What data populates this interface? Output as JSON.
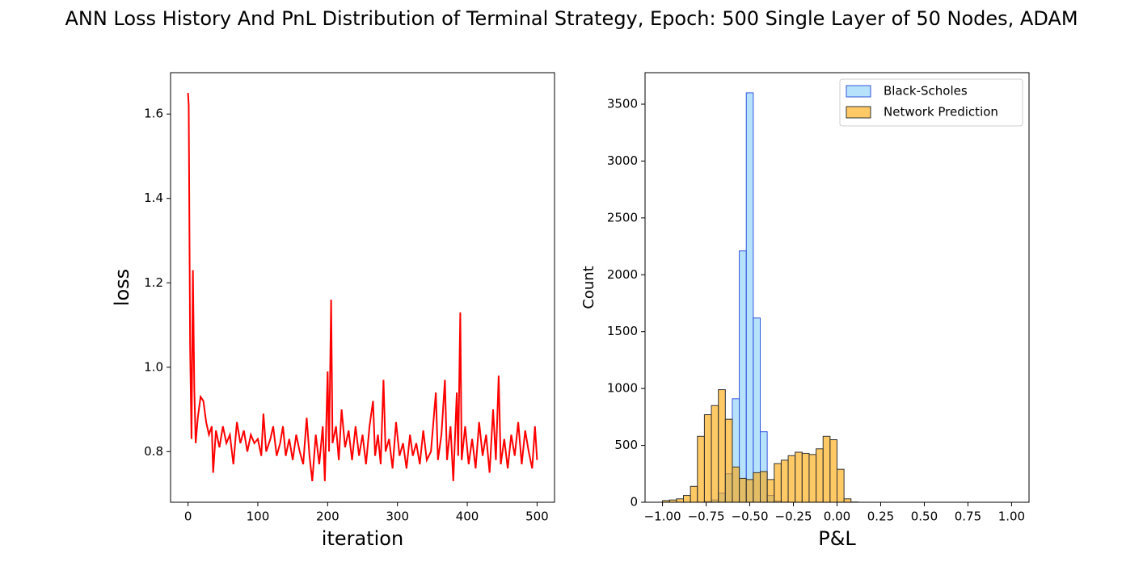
{
  "title": "ANN Loss History And PnL Distribution of Terminal Strategy, Epoch: 500 Single Layer of 50 Nodes, ADAM",
  "chart_data": [
    {
      "type": "line",
      "x_label": "iteration",
      "y_label": "loss",
      "color": "#ff0000",
      "xlim": [
        -25,
        525
      ],
      "ylim": [
        0.68,
        1.698
      ],
      "xticks": [
        0,
        100,
        200,
        300,
        400,
        500
      ],
      "yticks": [
        {
          "value": 0.8,
          "label": "0.8"
        },
        {
          "value": 1.0,
          "label": "1.0"
        },
        {
          "value": 1.2,
          "label": "1.2"
        },
        {
          "value": 1.4,
          "label": "1.4"
        },
        {
          "value": 1.6,
          "label": "1.6"
        }
      ],
      "x": [
        0,
        1,
        3,
        5,
        7,
        9,
        11,
        14,
        18,
        22,
        26,
        30,
        34,
        36,
        40,
        45,
        50,
        55,
        60,
        65,
        70,
        75,
        80,
        85,
        90,
        95,
        100,
        105,
        108,
        112,
        118,
        122,
        127,
        132,
        136,
        140,
        145,
        150,
        155,
        160,
        165,
        170,
        174,
        178,
        183,
        188,
        193,
        196,
        200,
        202,
        205,
        207,
        212,
        216,
        220,
        225,
        230,
        235,
        240,
        245,
        250,
        255,
        260,
        265,
        268,
        272,
        276,
        280,
        283,
        288,
        293,
        298,
        303,
        308,
        313,
        318,
        322,
        327,
        332,
        337,
        342,
        348,
        355,
        358,
        363,
        368,
        371,
        376,
        380,
        385,
        387,
        390,
        392,
        397,
        402,
        407,
        412,
        417,
        422,
        427,
        432,
        437,
        441,
        445,
        448,
        453,
        458,
        463,
        468,
        473,
        478,
        483,
        488,
        493,
        497,
        500
      ],
      "values": [
        1.65,
        1.62,
        1.05,
        0.83,
        1.23,
        0.95,
        0.82,
        0.88,
        0.93,
        0.92,
        0.87,
        0.84,
        0.86,
        0.75,
        0.85,
        0.81,
        0.86,
        0.82,
        0.84,
        0.77,
        0.87,
        0.82,
        0.85,
        0.8,
        0.84,
        0.82,
        0.83,
        0.79,
        0.89,
        0.8,
        0.83,
        0.86,
        0.79,
        0.82,
        0.86,
        0.79,
        0.83,
        0.78,
        0.84,
        0.8,
        0.77,
        0.88,
        0.79,
        0.73,
        0.84,
        0.77,
        0.86,
        0.73,
        0.99,
        0.8,
        1.16,
        0.82,
        0.86,
        0.78,
        0.9,
        0.81,
        0.85,
        0.78,
        0.86,
        0.79,
        0.84,
        0.77,
        0.86,
        0.92,
        0.79,
        0.84,
        0.77,
        0.97,
        0.8,
        0.83,
        0.76,
        0.87,
        0.79,
        0.82,
        0.76,
        0.84,
        0.79,
        0.82,
        0.77,
        0.85,
        0.78,
        0.8,
        0.94,
        0.78,
        0.84,
        0.97,
        0.78,
        0.86,
        0.73,
        0.94,
        0.79,
        1.13,
        0.78,
        0.86,
        0.77,
        0.83,
        0.76,
        0.87,
        0.79,
        0.84,
        0.75,
        0.9,
        0.78,
        0.98,
        0.77,
        0.83,
        0.76,
        0.84,
        0.79,
        0.87,
        0.77,
        0.85,
        0.8,
        0.76,
        0.86,
        0.78
      ]
    },
    {
      "type": "histogram",
      "x_label": "P&L",
      "y_label": "Count",
      "legend": "upper right",
      "xlim": [
        -1.1,
        1.1
      ],
      "ylim": [
        0,
        3777
      ],
      "xticks": [
        {
          "value": -1,
          "label": "−1.00"
        },
        {
          "value": -0.75,
          "label": "−0.75"
        },
        {
          "value": -0.5,
          "label": "−0.50"
        },
        {
          "value": -0.25,
          "label": "−0.25"
        },
        {
          "value": 0,
          "label": "0.00"
        },
        {
          "value": 0.25,
          "label": "0.25"
        },
        {
          "value": 0.5,
          "label": "0.50"
        },
        {
          "value": 0.75,
          "label": "0.75"
        },
        {
          "value": 1,
          "label": "1.00"
        }
      ],
      "yticks": [
        0,
        500,
        1000,
        1500,
        2000,
        2500,
        3000,
        3500
      ],
      "bins": [
        -1,
        -0.96,
        -0.92,
        -0.88,
        -0.84,
        -0.8,
        -0.76,
        -0.72,
        -0.68,
        -0.64,
        -0.6,
        -0.56,
        -0.52,
        -0.48,
        -0.44,
        -0.4,
        -0.36,
        -0.32,
        -0.28,
        -0.24,
        -0.2,
        -0.16,
        -0.12,
        -0.08,
        -0.04,
        0,
        0.04,
        0.08,
        0.12,
        0.16,
        0.2,
        0.24,
        0.28,
        0.32,
        0.36,
        0.4,
        0.44,
        0.48,
        0.52,
        0.56,
        0.6,
        0.64,
        0.68,
        0.72,
        0.76,
        0.8,
        0.84,
        0.88,
        0.92,
        0.96,
        1
      ],
      "series": [
        {
          "name": "Black-Scholes",
          "color": "#87cefa",
          "edge_color": "#3355dd",
          "values": [
            0,
            0,
            0,
            0,
            0,
            0,
            5,
            20,
            80,
            250,
            910,
            2210,
            3600,
            1620,
            620,
            60,
            10,
            2,
            0,
            0,
            0,
            0,
            0,
            0,
            0,
            0,
            0,
            0,
            0,
            0,
            0,
            0,
            0,
            0,
            0,
            0,
            0,
            0,
            0,
            0,
            0,
            0,
            0,
            0,
            0,
            0,
            0,
            0,
            0,
            0
          ]
        },
        {
          "name": "Network Prediction",
          "color": "#ffa500",
          "edge_color": "#333333",
          "values": [
            15,
            20,
            30,
            60,
            140,
            580,
            770,
            850,
            990,
            730,
            310,
            210,
            200,
            260,
            270,
            200,
            340,
            370,
            410,
            440,
            430,
            420,
            470,
            580,
            550,
            290,
            30,
            2,
            0,
            0,
            0,
            0,
            0,
            0,
            0,
            0,
            0,
            0,
            0,
            0,
            0,
            0,
            0,
            0,
            0,
            0,
            0,
            0,
            0,
            0
          ]
        }
      ]
    }
  ]
}
